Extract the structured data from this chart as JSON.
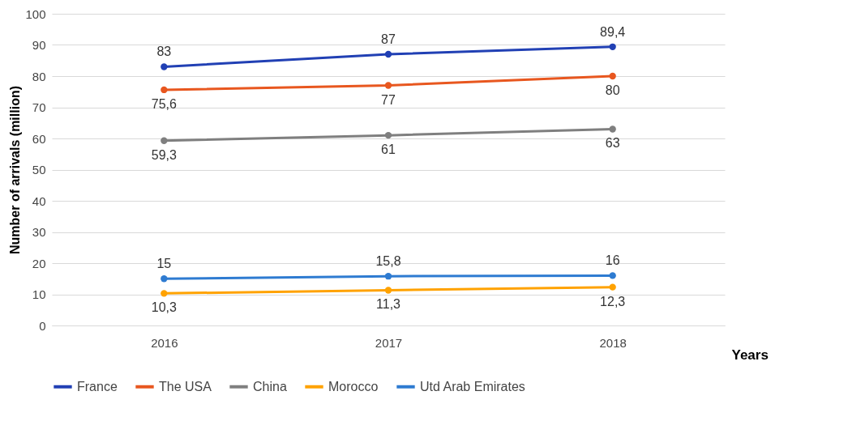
{
  "chart_data": {
    "type": "line",
    "xlabel": "Years",
    "ylabel": "Number of arrivals (million)",
    "categories": [
      "2016",
      "2017",
      "2018"
    ],
    "series": [
      {
        "name": "France",
        "color": "#2140b4",
        "values": [
          83,
          87,
          89.4
        ],
        "value_labels": [
          "83",
          "87",
          "89,4"
        ]
      },
      {
        "name": "The USA",
        "color": "#e8571f",
        "values": [
          75.6,
          77,
          80
        ],
        "value_labels": [
          "75,6",
          "77",
          "80"
        ]
      },
      {
        "name": "China",
        "color": "#7f7f7f",
        "values": [
          59.3,
          61,
          63
        ],
        "value_labels": [
          "59,3",
          "61",
          "63"
        ]
      },
      {
        "name": "Morocco",
        "color": "#ffa200",
        "values": [
          10.3,
          11.3,
          12.3
        ],
        "value_labels": [
          "10,3",
          "11,3",
          "12,3"
        ]
      },
      {
        "name": "Utd Arab Emirates",
        "color": "#2e7bd1",
        "values": [
          15,
          15.8,
          16
        ],
        "value_labels": [
          "15",
          "15,8",
          "16"
        ]
      }
    ],
    "ylim": [
      0,
      100
    ],
    "yticks": [
      0,
      10,
      20,
      30,
      40,
      50,
      60,
      70,
      80,
      90,
      100
    ],
    "grid": "y",
    "legend": "bottom",
    "marker": "circle",
    "line_style": "solid"
  }
}
